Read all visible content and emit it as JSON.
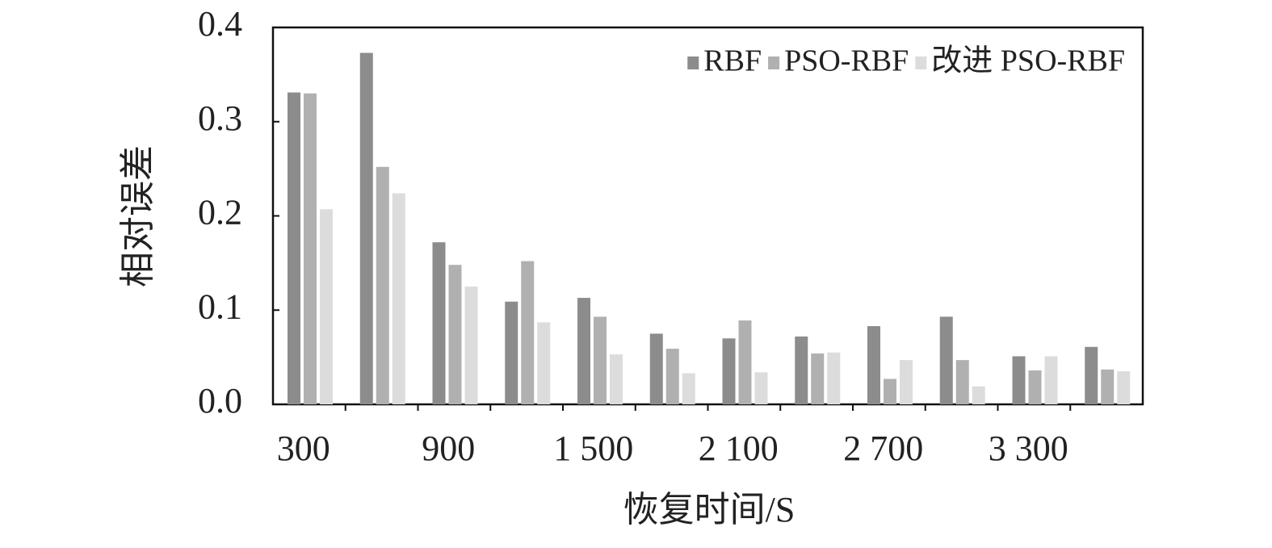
{
  "chart_data": {
    "type": "bar",
    "x_label": "恢复时间/S",
    "y_label": "相对误差",
    "categories": [
      "300",
      null,
      "900",
      null,
      "1 500",
      null,
      "2 100",
      null,
      "2 700",
      null,
      "3 300",
      null
    ],
    "series": [
      {
        "name": "RBF",
        "color": "#8c8c8c",
        "values": [
          0.331,
          0.373,
          0.172,
          0.109,
          0.113,
          0.075,
          0.07,
          0.072,
          0.083,
          0.093,
          0.051,
          0.061
        ]
      },
      {
        "name": "PSO-RBF",
        "color": "#b0b0b0",
        "values": [
          0.33,
          0.252,
          0.148,
          0.152,
          0.093,
          0.059,
          0.089,
          0.054,
          0.027,
          0.047,
          0.036,
          0.037
        ]
      },
      {
        "name": "改进 PSO-RBF",
        "color": "#dcdcdc",
        "values": [
          0.207,
          0.224,
          0.125,
          0.087,
          0.053,
          0.033,
          0.034,
          0.055,
          0.047,
          0.019,
          0.051,
          0.035
        ]
      }
    ],
    "ylim": [
      0,
      0.4
    ],
    "yticks": [
      {
        "value": 0,
        "label": "0.0"
      },
      0.1,
      0.2,
      0.3,
      0.4
    ],
    "legend": "upper right"
  }
}
